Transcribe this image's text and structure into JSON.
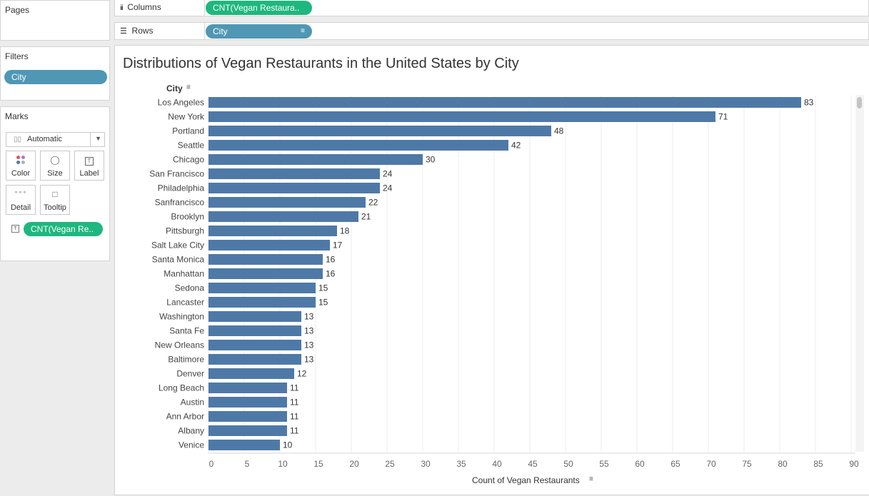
{
  "pages": {
    "title": "Pages"
  },
  "filters": {
    "title": "Filters",
    "pills": [
      "City"
    ]
  },
  "marks": {
    "title": "Marks",
    "mark_type": "Automatic",
    "buttons": [
      {
        "label": "Color",
        "icon": "color-dots-icon"
      },
      {
        "label": "Size",
        "icon": "size-icon"
      },
      {
        "label": "Label",
        "icon": "text-label-icon"
      },
      {
        "label": "Detail",
        "icon": "detail-dots-icon"
      },
      {
        "label": "Tooltip",
        "icon": "tooltip-icon"
      }
    ],
    "field_pill": "CNT(Vegan Re.."
  },
  "shelves": {
    "columns": {
      "label": "Columns",
      "icon": "columns-icon",
      "pill": "CNT(Vegan Restaura.."
    },
    "rows": {
      "label": "Rows",
      "icon": "rows-icon",
      "pill": "City"
    }
  },
  "colors": {
    "bar": "#4e79a7",
    "dimension_pill": "#4f97b4",
    "measure_pill": "#1eb77f"
  },
  "chart_data": {
    "type": "bar",
    "orientation": "horizontal",
    "title": "Distributions of Vegan Restaurants in the United States by City",
    "ylabel": "City",
    "xlabel": "Count of Vegan Restaurants",
    "categories": [
      "Los Angeles",
      "New York",
      "Portland",
      "Seattle",
      "Chicago",
      "San Francisco",
      "Philadelphia",
      "Sanfrancisco",
      "Brooklyn",
      "Pittsburgh",
      "Salt Lake City",
      "Santa Monica",
      "Manhattan",
      "Sedona",
      "Lancaster",
      "Washington",
      "Santa Fe",
      "New Orleans",
      "Baltimore",
      "Denver",
      "Long Beach",
      "Austin",
      "Ann Arbor",
      "Albany",
      "Venice"
    ],
    "values": [
      83,
      71,
      48,
      42,
      30,
      24,
      24,
      22,
      21,
      18,
      17,
      16,
      16,
      15,
      15,
      13,
      13,
      13,
      13,
      12,
      11,
      11,
      11,
      11,
      10
    ],
    "xlim": [
      0,
      90
    ],
    "xticks": [
      0,
      5,
      10,
      15,
      20,
      25,
      30,
      35,
      40,
      45,
      50,
      55,
      60,
      65,
      70,
      75,
      80,
      85,
      90
    ],
    "data_labels": true,
    "grid": "vertical"
  }
}
